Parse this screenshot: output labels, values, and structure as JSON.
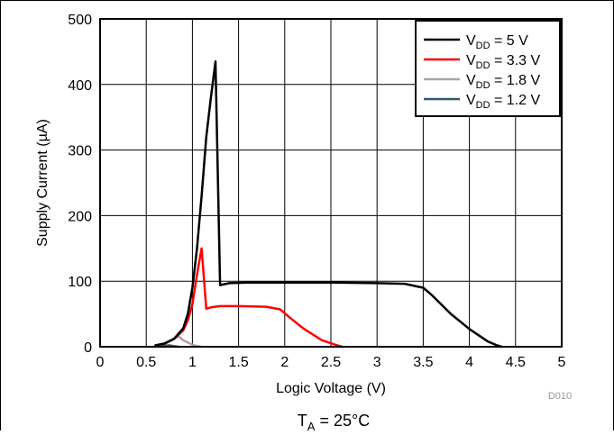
{
  "chart_data": {
    "type": "line",
    "title": "",
    "xlabel": "Logic Voltage (V)",
    "ylabel": "Supply Current (µA)",
    "xlim": [
      0,
      5
    ],
    "ylim": [
      0,
      500
    ],
    "x_ticks": [
      0,
      0.5,
      1,
      1.5,
      2,
      2.5,
      3,
      3.5,
      4,
      4.5,
      5
    ],
    "x_tick_labels": [
      "0",
      "0.5",
      "1",
      "1.5",
      "2",
      "2.5",
      "3",
      "3.5",
      "4",
      "4.5",
      "5"
    ],
    "y_ticks": [
      0,
      100,
      200,
      300,
      400,
      500
    ],
    "y_tick_labels": [
      "0",
      "100",
      "200",
      "300",
      "400",
      "500"
    ],
    "grid": true,
    "legend_position": "top-right",
    "series": [
      {
        "name_main": "V",
        "name_sub": "DD",
        "name_rest": " = 5 V",
        "color": "#000000",
        "x": [
          0.6,
          0.7,
          0.8,
          0.9,
          0.95,
          1.0,
          1.05,
          1.1,
          1.15,
          1.2,
          1.25,
          1.3,
          1.4,
          1.6,
          2.0,
          2.5,
          3.0,
          3.3,
          3.5,
          3.6,
          3.8,
          4.0,
          4.2,
          4.3,
          4.35
        ],
        "y": [
          2,
          5,
          12,
          28,
          50,
          90,
          150,
          230,
          320,
          380,
          435,
          94,
          97,
          98,
          98,
          98,
          97,
          96,
          90,
          78,
          50,
          27,
          8,
          2,
          0
        ]
      },
      {
        "name_main": "V",
        "name_sub": "DD",
        "name_rest": " = 3.3 V",
        "color": "#ff0000",
        "x": [
          0.6,
          0.7,
          0.8,
          0.9,
          0.95,
          1.0,
          1.05,
          1.1,
          1.15,
          1.2,
          1.3,
          1.5,
          1.8,
          1.95,
          2.05,
          2.2,
          2.4,
          2.55,
          2.62
        ],
        "y": [
          2,
          5,
          12,
          25,
          40,
          65,
          110,
          150,
          58,
          60,
          62,
          62,
          61,
          57,
          45,
          28,
          10,
          3,
          0
        ]
      },
      {
        "name_main": "V",
        "name_sub": "DD",
        "name_rest": " = 1.8 V",
        "color": "#a6a6a6",
        "x": [
          0.6,
          0.7,
          0.8,
          0.85,
          0.9,
          1.0,
          1.05,
          1.1
        ],
        "y": [
          1,
          5,
          12,
          16,
          10,
          3,
          1,
          0
        ]
      },
      {
        "name_main": "V",
        "name_sub": "DD",
        "name_rest": " = 1.2 V",
        "color": "#2b5a73",
        "x": [
          0.6,
          0.7,
          0.75,
          0.8,
          0.85
        ],
        "y": [
          0.5,
          1.5,
          2,
          1,
          0
        ]
      }
    ],
    "annotations": {
      "code": "D010",
      "condition_main": "T",
      "condition_sub": "A",
      "condition_rest": " = 25°C"
    }
  }
}
